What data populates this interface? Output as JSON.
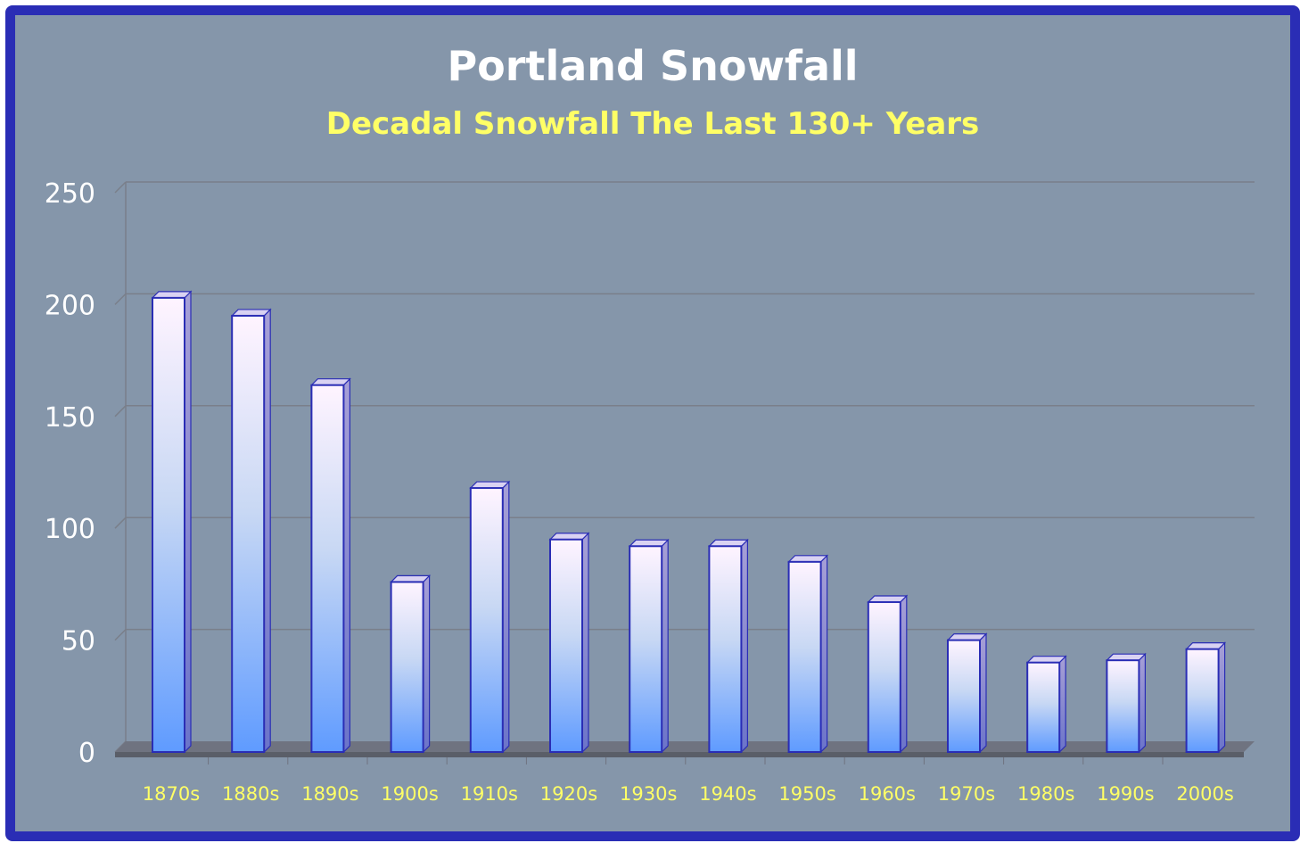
{
  "chart_data": {
    "type": "bar",
    "title": "Portland Snowfall",
    "subtitle": "Decadal Snowfall The Last 130+ Years",
    "xlabel": "",
    "ylabel": "",
    "categories": [
      "1870s",
      "1880s",
      "1890s",
      "1900s",
      "1910s",
      "1920s",
      "1930s",
      "1940s",
      "1950s",
      "1960s",
      "1970s",
      "1980s",
      "1990s",
      "2000s"
    ],
    "values": [
      203,
      195,
      164,
      76,
      118,
      95,
      92,
      92,
      85,
      67,
      50,
      40,
      41,
      46
    ],
    "ylim": [
      0,
      250
    ],
    "yticks": [
      0,
      50,
      100,
      150,
      200,
      250
    ],
    "grid": true,
    "colors": {
      "frame": "#2a2db5",
      "background": "#8596aa",
      "bar_top": "#fff4ff",
      "bar_bottom": "#5f9bff",
      "bar_edge": "#2a2db5",
      "title": "#ffffff",
      "subtitle": "#ffff66",
      "tick_labels_x": "#ffff66",
      "tick_labels_y": "#ffffff"
    }
  }
}
